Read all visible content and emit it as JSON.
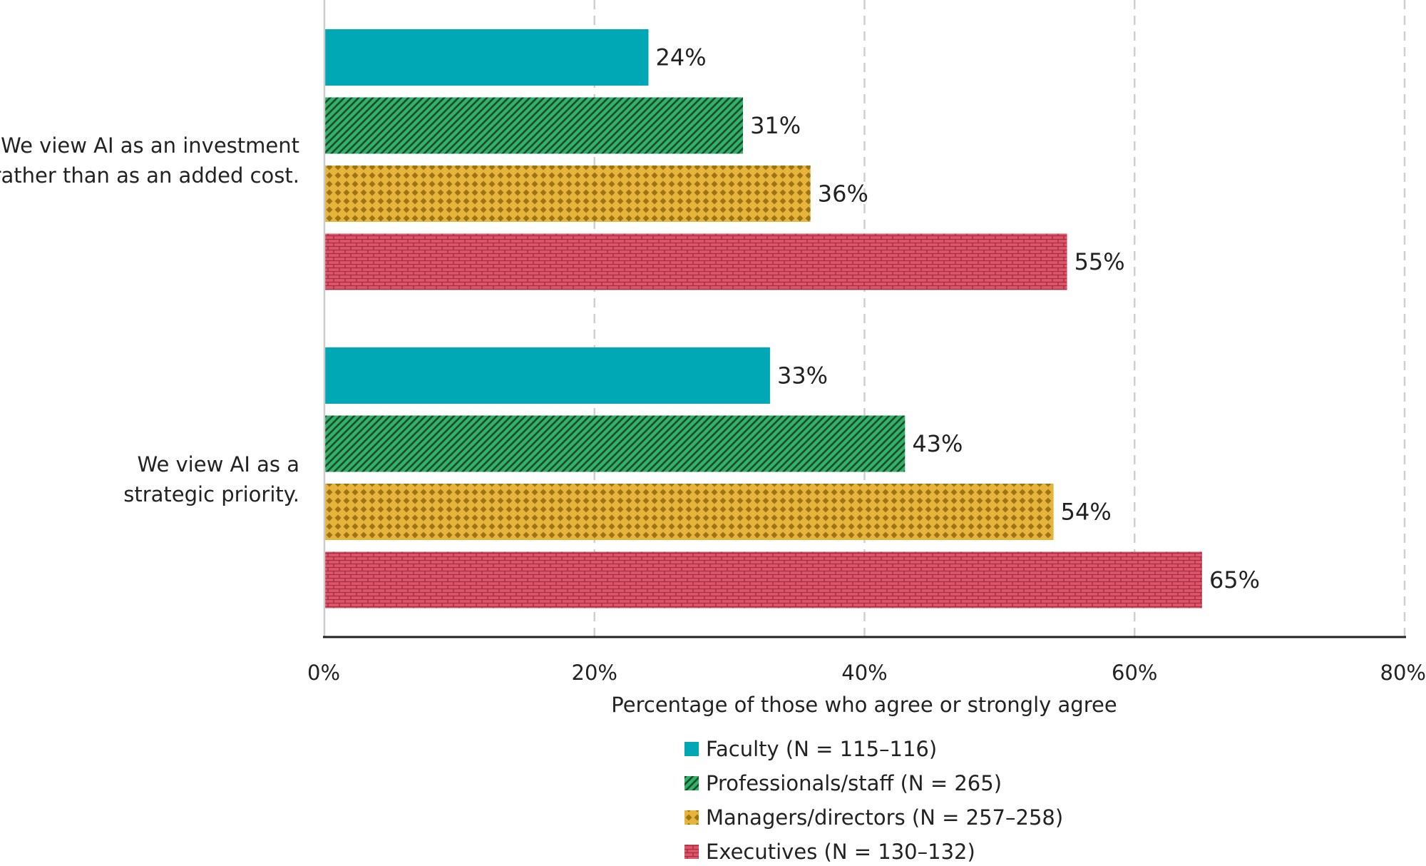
{
  "chart_data": {
    "type": "bar",
    "orientation": "horizontal",
    "categories": [
      "We view AI as an investment rather than as an added cost.",
      "We view AI as a strategic priority."
    ],
    "category_lines": [
      [
        "We view AI as an investment",
        "rather than as an added cost."
      ],
      [
        "We view AI as a",
        "strategic priority."
      ]
    ],
    "series": [
      {
        "name": "Faculty (N = 115–116)",
        "values": [
          24,
          33
        ],
        "color": "#00a7b5",
        "pattern": "solid"
      },
      {
        "name": "Professionals/staff (N = 265)",
        "values": [
          31,
          43
        ],
        "color": "#2fb36b",
        "pattern": "diagonal-hatch"
      },
      {
        "name": "Managers/directors (N = 257–258)",
        "values": [
          36,
          54
        ],
        "color": "#d7a72a",
        "pattern": "diamond"
      },
      {
        "name": "Executives (N = 130–132)",
        "values": [
          55,
          65
        ],
        "color": "#e0546a",
        "pattern": "brick"
      }
    ],
    "value_labels": [
      [
        "24%",
        "33%"
      ],
      [
        "31%",
        "43%"
      ],
      [
        "36%",
        "54%"
      ],
      [
        "55%",
        "65%"
      ]
    ],
    "xlabel": "Percentage of those who agree or strongly agree",
    "ylabel": "",
    "xlim": [
      0,
      80
    ],
    "x_ticks": [
      0,
      20,
      40,
      60,
      80
    ],
    "x_tick_labels": [
      "0%",
      "20%",
      "40%",
      "60%",
      "80%"
    ],
    "grid": "vertical-dashed",
    "legend_position": "bottom"
  }
}
